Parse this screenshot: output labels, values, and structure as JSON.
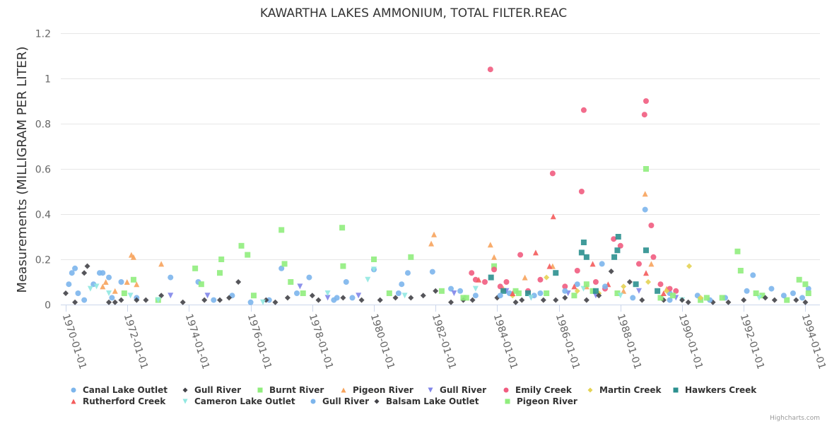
{
  "chart_data": {
    "type": "scatter",
    "title": "KAWARTHA LAKES AMMONIUM, TOTAL FILTER.REAC",
    "xlabel": "",
    "ylabel": "Measurements (MILLIGRAM PER LITER)",
    "ylim": [
      0,
      1.2
    ],
    "xlim": [
      1970,
      1994.2
    ],
    "yticks": [
      "0",
      "0.2",
      "0.4",
      "0.6",
      "0.8",
      "1",
      "1.2"
    ],
    "ytick_values": [
      0,
      0.2,
      0.4,
      0.6,
      0.8,
      1,
      1.2
    ],
    "xticks": [
      "1970-01-01",
      "1972-01-01",
      "1974-01-01",
      "1976-01-01",
      "1978-01-01",
      "1980-01-01",
      "1982-01-01",
      "1984-01-01",
      "1986-01-01",
      "1988-01-01",
      "1990-01-01",
      "1992-01-01",
      "1994-01-01"
    ],
    "xtick_values": [
      1970,
      1972,
      1974,
      1976,
      1978,
      1980,
      1982,
      1984,
      1986,
      1988,
      1990,
      1992,
      1994
    ],
    "grid": true,
    "legend_position": "bottom",
    "credits": "Highcharts.com",
    "series": [
      {
        "name": "Canal Lake Outlet",
        "color": "#7cb5ec",
        "symbol": "circle",
        "points": [
          [
            1970.1,
            0.09
          ],
          [
            1970.2,
            0.14
          ],
          [
            1970.3,
            0.16
          ],
          [
            1970.4,
            0.05
          ],
          [
            1970.6,
            0.02
          ],
          [
            1970.9,
            0.09
          ],
          [
            1971.1,
            0.14
          ],
          [
            1971.2,
            0.14
          ],
          [
            1971.4,
            0.12
          ],
          [
            1971.5,
            0.03
          ],
          [
            1971.8,
            0.1
          ],
          [
            1972.3,
            0.03
          ],
          [
            1973.4,
            0.12
          ],
          [
            1974.3,
            0.1
          ],
          [
            1975.4,
            0.04
          ],
          [
            1976.6,
            0.02
          ],
          [
            1977.0,
            0.16
          ],
          [
            1977.9,
            0.12
          ],
          [
            1978.8,
            0.03
          ],
          [
            1979.1,
            0.1
          ],
          [
            1980.0,
            0.155
          ],
          [
            1980.9,
            0.09
          ],
          [
            1981.1,
            0.14
          ],
          [
            1981.9,
            0.145
          ],
          [
            1982.5,
            0.07
          ],
          [
            1983.3,
            0.04
          ],
          [
            1984.4,
            0.05
          ],
          [
            1985.2,
            0.04
          ],
          [
            1986.6,
            0.09
          ],
          [
            1987.4,
            0.18
          ],
          [
            1988.8,
            0.42
          ],
          [
            1989.6,
            0.05
          ],
          [
            1990.5,
            0.04
          ],
          [
            1991.4,
            0.03
          ],
          [
            1992.3,
            0.13
          ],
          [
            1992.9,
            0.07
          ],
          [
            1993.6,
            0.05
          ],
          [
            1994.1,
            0.07
          ]
        ]
      },
      {
        "name": "Gull River",
        "color": "#434348",
        "symbol": "diamond",
        "points": [
          [
            1970.0,
            0.05
          ],
          [
            1970.3,
            0.01
          ],
          [
            1970.6,
            0.14
          ],
          [
            1970.7,
            0.17
          ],
          [
            1971.4,
            0.01
          ],
          [
            1971.8,
            0.02
          ],
          [
            1972.3,
            0.02
          ],
          [
            1973.1,
            0.04
          ],
          [
            1974.5,
            0.02
          ],
          [
            1975.3,
            0.03
          ],
          [
            1975.6,
            0.1
          ],
          [
            1976.5,
            0.02
          ],
          [
            1977.2,
            0.03
          ],
          [
            1978.0,
            0.04
          ],
          [
            1979.0,
            0.03
          ],
          [
            1980.2,
            0.02
          ],
          [
            1981.2,
            0.03
          ],
          [
            1982.0,
            0.06
          ],
          [
            1982.5,
            0.01
          ],
          [
            1983.2,
            0.02
          ],
          [
            1984.0,
            0.03
          ],
          [
            1984.8,
            0.02
          ],
          [
            1985.5,
            0.02
          ],
          [
            1986.2,
            0.03
          ],
          [
            1986.9,
            0.02
          ],
          [
            1987.7,
            0.147
          ],
          [
            1988.3,
            0.1
          ],
          [
            1989.4,
            0.02
          ],
          [
            1990.2,
            0.01
          ],
          [
            1991.0,
            0.01
          ],
          [
            1992.0,
            0.02
          ],
          [
            1993.0,
            0.02
          ],
          [
            1994.0,
            0.01
          ]
        ]
      },
      {
        "name": "Burnt River",
        "color": "#90ed7d",
        "symbol": "square",
        "points": [
          [
            1971.9,
            0.05
          ],
          [
            1972.2,
            0.11
          ],
          [
            1973.0,
            0.02
          ],
          [
            1974.2,
            0.16
          ],
          [
            1974.4,
            0.09
          ],
          [
            1975.05,
            0.2
          ],
          [
            1975.0,
            0.14
          ],
          [
            1975.7,
            0.26
          ],
          [
            1975.9,
            0.22
          ],
          [
            1976.1,
            0.04
          ],
          [
            1977.0,
            0.33
          ],
          [
            1977.1,
            0.18
          ],
          [
            1977.3,
            0.1
          ],
          [
            1977.7,
            0.05
          ],
          [
            1978.97,
            0.34
          ],
          [
            1979.0,
            0.17
          ],
          [
            1980.0,
            0.2
          ],
          [
            1980.5,
            0.05
          ],
          [
            1981.2,
            0.21
          ],
          [
            1982.2,
            0.06
          ],
          [
            1983.0,
            0.03
          ],
          [
            1983.9,
            0.17
          ],
          [
            1984.6,
            0.06
          ],
          [
            1985.6,
            0.05
          ],
          [
            1986.5,
            0.04
          ],
          [
            1987.1,
            0.06
          ],
          [
            1987.9,
            0.05
          ],
          [
            1989.3,
            0.03
          ],
          [
            1990.6,
            0.02
          ],
          [
            1991.3,
            0.03
          ],
          [
            1992.6,
            0.04
          ],
          [
            1993.4,
            0.02
          ]
        ]
      },
      {
        "name": "Pigeon River",
        "color": "#f7a35c",
        "symbol": "triangle",
        "points": [
          [
            1971.2,
            0.08
          ],
          [
            1971.3,
            0.1
          ],
          [
            1971.6,
            0.06
          ],
          [
            1971.99,
            0.1
          ],
          [
            1972.13,
            0.22
          ],
          [
            1972.2,
            0.21
          ],
          [
            1972.3,
            0.09
          ],
          [
            1973.1,
            0.18
          ],
          [
            1981.86,
            0.27
          ],
          [
            1981.95,
            0.31
          ],
          [
            1983.78,
            0.265
          ],
          [
            1983.9,
            0.21
          ],
          [
            1984.2,
            0.07
          ],
          [
            1984.9,
            0.12
          ],
          [
            1985.8,
            0.17
          ],
          [
            1986.9,
            0.08
          ],
          [
            1988.1,
            0.06
          ],
          [
            1988.8,
            0.49
          ],
          [
            1989.0,
            0.18
          ],
          [
            1989.5,
            0.07
          ]
        ]
      },
      {
        "name": "Gull River",
        "color": "#8085e9",
        "symbol": "triangle-down",
        "points": [
          [
            1973.4,
            0.04
          ],
          [
            1974.6,
            0.04
          ],
          [
            1977.6,
            0.08
          ],
          [
            1978.5,
            0.03
          ],
          [
            1979.5,
            0.04
          ],
          [
            1982.6,
            0.05
          ],
          [
            1984.3,
            0.06
          ],
          [
            1985.1,
            0.03
          ],
          [
            1986.3,
            0.05
          ],
          [
            1987.2,
            0.04
          ],
          [
            1988.6,
            0.06
          ],
          [
            1989.8,
            0.03
          ]
        ]
      },
      {
        "name": "Emily Creek",
        "color": "#f15c80",
        "symbol": "circle",
        "points": [
          [
            1983.17,
            0.14
          ],
          [
            1983.3,
            0.11
          ],
          [
            1983.6,
            0.1
          ],
          [
            1983.78,
            1.04
          ],
          [
            1983.9,
            0.155
          ],
          [
            1984.1,
            0.08
          ],
          [
            1984.3,
            0.1
          ],
          [
            1984.75,
            0.22
          ],
          [
            1985.0,
            0.06
          ],
          [
            1985.4,
            0.11
          ],
          [
            1985.8,
            0.58
          ],
          [
            1986.2,
            0.08
          ],
          [
            1986.6,
            0.15
          ],
          [
            1986.74,
            0.5
          ],
          [
            1986.81,
            0.86
          ],
          [
            1987.2,
            0.1
          ],
          [
            1987.5,
            0.07
          ],
          [
            1987.78,
            0.29
          ],
          [
            1988.0,
            0.26
          ],
          [
            1988.6,
            0.18
          ],
          [
            1988.78,
            0.84
          ],
          [
            1988.83,
            0.9
          ],
          [
            1989.0,
            0.35
          ],
          [
            1989.07,
            0.21
          ],
          [
            1989.3,
            0.09
          ],
          [
            1989.6,
            0.07
          ],
          [
            1989.8,
            0.06
          ]
        ]
      },
      {
        "name": "Martin Creek",
        "color": "#e4d354",
        "symbol": "diamond",
        "points": [
          [
            1984.5,
            0.04
          ],
          [
            1985.6,
            0.12
          ],
          [
            1986.6,
            0.06
          ],
          [
            1987.3,
            0.05
          ],
          [
            1988.1,
            0.08
          ],
          [
            1988.9,
            0.1
          ],
          [
            1989.5,
            0.06
          ],
          [
            1990.23,
            0.17
          ],
          [
            1990.6,
            0.03
          ]
        ]
      },
      {
        "name": "Hawkers Creek",
        "color": "#2b908f",
        "symbol": "square",
        "points": [
          [
            1983.8,
            0.12
          ],
          [
            1984.2,
            0.06
          ],
          [
            1985.0,
            0.05
          ],
          [
            1985.9,
            0.14
          ],
          [
            1986.74,
            0.23
          ],
          [
            1986.81,
            0.275
          ],
          [
            1986.9,
            0.21
          ],
          [
            1987.2,
            0.06
          ],
          [
            1987.8,
            0.21
          ],
          [
            1987.93,
            0.3
          ],
          [
            1987.9,
            0.24
          ],
          [
            1988.5,
            0.09
          ],
          [
            1988.83,
            0.24
          ],
          [
            1989.2,
            0.06
          ]
        ]
      },
      {
        "name": "Rutherford Creek",
        "color": "#f45b5b",
        "symbol": "triangle",
        "points": [
          [
            1983.4,
            0.11
          ],
          [
            1984.5,
            0.05
          ],
          [
            1985.25,
            0.23
          ],
          [
            1985.7,
            0.17
          ],
          [
            1985.82,
            0.39
          ],
          [
            1986.5,
            0.08
          ],
          [
            1987.1,
            0.18
          ],
          [
            1987.6,
            0.09
          ],
          [
            1988.83,
            0.14
          ],
          [
            1989.4,
            0.05
          ]
        ]
      },
      {
        "name": "Cameron Lake Outlet",
        "color": "#91e8e1",
        "symbol": "triangle-down",
        "points": [
          [
            1970.8,
            0.07
          ],
          [
            1971.0,
            0.08
          ],
          [
            1971.4,
            0.05
          ],
          [
            1972.1,
            0.04
          ],
          [
            1973.0,
            0.02
          ],
          [
            1976.4,
            0.01
          ],
          [
            1978.5,
            0.05
          ],
          [
            1979.8,
            0.11
          ],
          [
            1980.0,
            0.155
          ],
          [
            1981.0,
            0.04
          ],
          [
            1983.3,
            0.07
          ],
          [
            1985.1,
            0.03
          ],
          [
            1986.8,
            0.07
          ],
          [
            1988.0,
            0.04
          ],
          [
            1990.0,
            0.02
          ],
          [
            1992.5,
            0.03
          ]
        ]
      },
      {
        "name": "Gull River",
        "color": "#7cb5ec",
        "symbol": "circle",
        "points": [
          [
            1974.8,
            0.02
          ],
          [
            1976.0,
            0.01
          ],
          [
            1977.5,
            0.05
          ],
          [
            1978.7,
            0.02
          ],
          [
            1979.3,
            0.03
          ],
          [
            1980.8,
            0.05
          ],
          [
            1982.8,
            0.06
          ],
          [
            1984.1,
            0.04
          ],
          [
            1985.4,
            0.05
          ],
          [
            1986.2,
            0.06
          ],
          [
            1987.5,
            0.08
          ],
          [
            1988.4,
            0.03
          ],
          [
            1989.6,
            0.02
          ],
          [
            1990.9,
            0.02
          ],
          [
            1992.1,
            0.06
          ],
          [
            1993.3,
            0.04
          ],
          [
            1993.9,
            0.03
          ]
        ]
      },
      {
        "name": "Balsam Lake Outlet",
        "color": "#434348",
        "symbol": "diamond",
        "points": [
          [
            1971.6,
            0.01
          ],
          [
            1972.6,
            0.02
          ],
          [
            1973.8,
            0.01
          ],
          [
            1975.0,
            0.02
          ],
          [
            1976.8,
            0.01
          ],
          [
            1978.2,
            0.02
          ],
          [
            1979.6,
            0.02
          ],
          [
            1980.7,
            0.03
          ],
          [
            1981.6,
            0.04
          ],
          [
            1982.9,
            0.02
          ],
          [
            1984.6,
            0.01
          ],
          [
            1985.9,
            0.02
          ],
          [
            1987.3,
            0.04
          ],
          [
            1988.7,
            0.02
          ],
          [
            1990.0,
            0.02
          ],
          [
            1991.5,
            0.01
          ],
          [
            1992.7,
            0.03
          ],
          [
            1993.7,
            0.02
          ]
        ]
      },
      {
        "name": "Pigeon River",
        "color": "#90ed7d",
        "symbol": "square",
        "points": [
          [
            1982.9,
            0.03
          ],
          [
            1984.7,
            0.05
          ],
          [
            1986.9,
            0.09
          ],
          [
            1988.83,
            0.6
          ],
          [
            1989.7,
            0.04
          ],
          [
            1990.8,
            0.03
          ],
          [
            1991.8,
            0.235
          ],
          [
            1991.9,
            0.15
          ],
          [
            1992.4,
            0.05
          ],
          [
            1993.8,
            0.11
          ],
          [
            1994.0,
            0.09
          ],
          [
            1994.1,
            0.05
          ]
        ]
      }
    ]
  }
}
